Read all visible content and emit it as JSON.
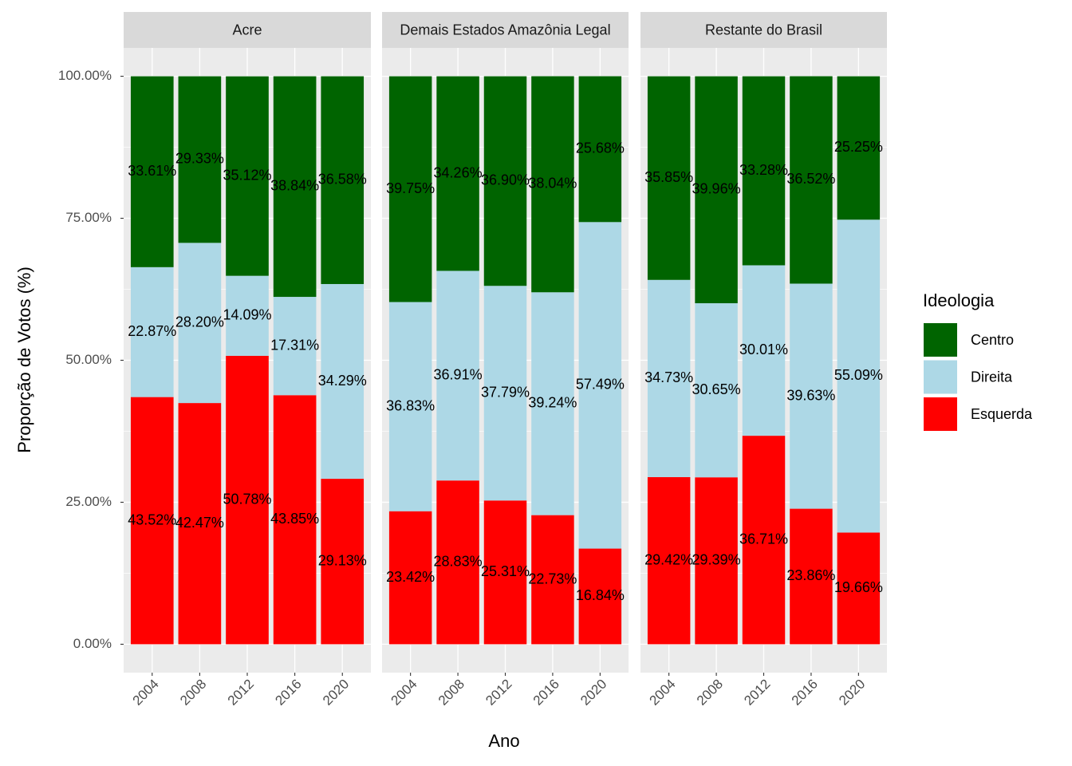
{
  "y_label": "Proporção de Votos (%)",
  "x_label": "Ano",
  "legend_title": "Ideologia",
  "chart_data": [
    {
      "type": "bar",
      "stacked": true,
      "title": "Acre",
      "categories": [
        "2004",
        "2008",
        "2012",
        "2016",
        "2020"
      ],
      "ylim": [
        -5,
        105
      ],
      "yticks": [
        {
          "value": 0,
          "label": "0.00%"
        },
        {
          "value": 25,
          "label": "25.00%"
        },
        {
          "value": 50,
          "label": "50.00%"
        },
        {
          "value": 75,
          "label": "75.00%"
        },
        {
          "value": 100,
          "label": "100.00%"
        }
      ],
      "grid": true,
      "series": [
        {
          "name": "Centro",
          "color": "#006400",
          "values": [
            33.61,
            29.33,
            35.12,
            38.84,
            36.58
          ],
          "value_labels": [
            "33.61%",
            "29.33%",
            "35.12%",
            "38.84%",
            "36.58%"
          ]
        },
        {
          "name": "Direita",
          "color": "#add8e6",
          "values": [
            22.87,
            28.2,
            14.09,
            17.31,
            34.29
          ],
          "value_labels": [
            "22.87%",
            "28.20%",
            "14.09%",
            "17.31%",
            "34.29%"
          ]
        },
        {
          "name": "Esquerda",
          "color": "#ff0000",
          "values": [
            43.52,
            42.47,
            50.78,
            43.85,
            29.13
          ],
          "value_labels": [
            "43.52%",
            "42.47%",
            "50.78%",
            "43.85%",
            "29.13%"
          ]
        }
      ]
    },
    {
      "type": "bar",
      "stacked": true,
      "title": "Demais Estados Amazônia Legal",
      "categories": [
        "2004",
        "2008",
        "2012",
        "2016",
        "2020"
      ],
      "ylim": [
        -5,
        105
      ],
      "yticks": [
        {
          "value": 0,
          "label": "0.00%"
        },
        {
          "value": 25,
          "label": "25.00%"
        },
        {
          "value": 50,
          "label": "50.00%"
        },
        {
          "value": 75,
          "label": "75.00%"
        },
        {
          "value": 100,
          "label": "100.00%"
        }
      ],
      "grid": true,
      "series": [
        {
          "name": "Centro",
          "color": "#006400",
          "values": [
            39.75,
            34.26,
            36.9,
            38.04,
            25.68
          ],
          "value_labels": [
            "39.75%",
            "34.26%",
            "36.90%",
            "38.04%",
            "25.68%"
          ]
        },
        {
          "name": "Direita",
          "color": "#add8e6",
          "values": [
            36.83,
            36.91,
            37.79,
            39.24,
            57.49
          ],
          "value_labels": [
            "36.83%",
            "36.91%",
            "37.79%",
            "39.24%",
            "57.49%"
          ]
        },
        {
          "name": "Esquerda",
          "color": "#ff0000",
          "values": [
            23.42,
            28.83,
            25.31,
            22.73,
            16.84
          ],
          "value_labels": [
            "23.42%",
            "28.83%",
            "25.31%",
            "22.73%",
            "16.84%"
          ]
        }
      ]
    },
    {
      "type": "bar",
      "stacked": true,
      "title": "Restante do Brasil",
      "categories": [
        "2004",
        "2008",
        "2012",
        "2016",
        "2020"
      ],
      "ylim": [
        -5,
        105
      ],
      "yticks": [
        {
          "value": 0,
          "label": "0.00%"
        },
        {
          "value": 25,
          "label": "25.00%"
        },
        {
          "value": 50,
          "label": "50.00%"
        },
        {
          "value": 75,
          "label": "75.00%"
        },
        {
          "value": 100,
          "label": "100.00%"
        }
      ],
      "grid": true,
      "series": [
        {
          "name": "Centro",
          "color": "#006400",
          "values": [
            35.85,
            39.96,
            33.28,
            36.52,
            25.25
          ],
          "value_labels": [
            "35.85%",
            "39.96%",
            "33.28%",
            "36.52%",
            "25.25%"
          ]
        },
        {
          "name": "Direita",
          "color": "#add8e6",
          "values": [
            34.73,
            30.65,
            30.01,
            39.63,
            55.09
          ],
          "value_labels": [
            "34.73%",
            "30.65%",
            "30.01%",
            "39.63%",
            "55.09%"
          ]
        },
        {
          "name": "Esquerda",
          "color": "#ff0000",
          "values": [
            29.42,
            29.39,
            36.71,
            23.86,
            19.66
          ],
          "value_labels": [
            "29.42%",
            "29.39%",
            "36.71%",
            "23.86%",
            "19.66%"
          ]
        }
      ]
    }
  ]
}
